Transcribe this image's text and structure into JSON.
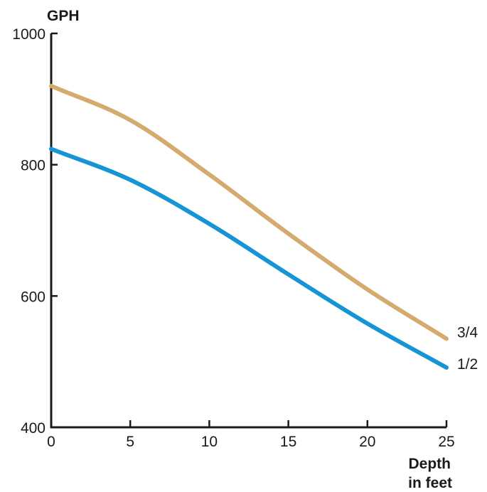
{
  "chart_data": {
    "type": "line",
    "title": "",
    "ylabel": "GPH",
    "xlabel": [
      "Depth",
      "in feet"
    ],
    "xlim": [
      0,
      25
    ],
    "ylim": [
      400,
      1000
    ],
    "xticks": [
      0,
      5,
      10,
      15,
      20,
      25
    ],
    "yticks": [
      400,
      600,
      800,
      1000
    ],
    "x": [
      0,
      5,
      10,
      15,
      20,
      25
    ],
    "grid": false,
    "legend": "inline-right",
    "series": [
      {
        "name": "3/4",
        "color": "#d4aa6e",
        "values": [
          920,
          868,
          785,
          695,
          610,
          535
        ]
      },
      {
        "name": "1/2",
        "color": "#1694d3",
        "values": [
          824,
          777,
          710,
          633,
          558,
          491
        ]
      }
    ]
  }
}
